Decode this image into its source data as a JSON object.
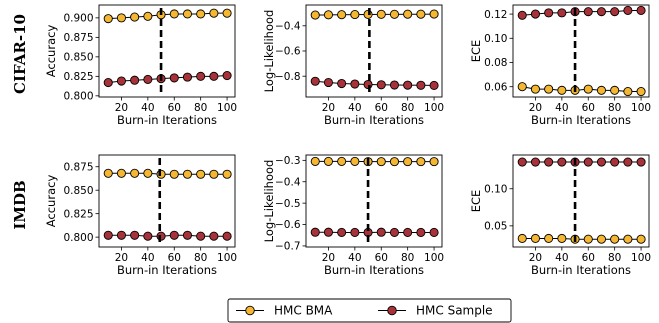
{
  "colors": {
    "bma": "#f5b731",
    "sample": "#a8323a",
    "line": "#000000",
    "marker_edge": "#000000"
  },
  "legend": {
    "position": "bottom-center",
    "entries": [
      "HMC BMA",
      "HMC Sample"
    ]
  },
  "chart_data": [
    {
      "type": "line",
      "row": "CIFAR-10",
      "col": 0,
      "xlabel": "Burn-in Iterations",
      "ylabel": "Accuracy",
      "x": [
        10,
        20,
        30,
        40,
        50,
        60,
        70,
        80,
        90,
        100
      ],
      "xlim": [
        3,
        106
      ],
      "xticks": [
        20,
        40,
        60,
        80,
        100
      ],
      "ylim": [
        0.7985,
        0.9165
      ],
      "yticks": [
        0.8,
        0.825,
        0.85,
        0.875,
        0.9
      ],
      "yticklabels": [
        "0.800",
        "0.825",
        "0.850",
        "0.875",
        "0.900"
      ],
      "vline": 50,
      "series": [
        {
          "name": "HMC BMA",
          "values": [
            0.899,
            0.9,
            0.901,
            0.902,
            0.904,
            0.905,
            0.905,
            0.905,
            0.906,
            0.906
          ]
        },
        {
          "name": "HMC Sample",
          "values": [
            0.817,
            0.819,
            0.82,
            0.821,
            0.822,
            0.823,
            0.824,
            0.825,
            0.825,
            0.826
          ]
        }
      ]
    },
    {
      "type": "line",
      "row": "CIFAR-10",
      "col": 1,
      "xlabel": "Burn-in Iterations",
      "ylabel": "Log-Likelihood",
      "x": [
        10,
        20,
        30,
        40,
        50,
        60,
        70,
        80,
        90,
        100
      ],
      "xlim": [
        3,
        106
      ],
      "xticks": [
        20,
        40,
        60,
        80,
        100
      ],
      "ylim": [
        -0.965,
        -0.235
      ],
      "yticks": [
        -0.8,
        -0.6,
        -0.4
      ],
      "yticklabels": [
        "−0.8",
        "−0.6",
        "−0.4"
      ],
      "vline": 51,
      "series": [
        {
          "name": "HMC BMA",
          "values": [
            -0.315,
            -0.313,
            -0.312,
            -0.311,
            -0.31,
            -0.309,
            -0.309,
            -0.308,
            -0.308,
            -0.307
          ]
        },
        {
          "name": "HMC Sample",
          "values": [
            -0.84,
            -0.85,
            -0.858,
            -0.862,
            -0.866,
            -0.868,
            -0.87,
            -0.871,
            -0.872,
            -0.873
          ]
        }
      ]
    },
    {
      "type": "line",
      "row": "CIFAR-10",
      "col": 2,
      "xlabel": "Burn-in Iterations",
      "ylabel": "ECE",
      "x": [
        10,
        20,
        30,
        40,
        50,
        60,
        70,
        80,
        90,
        100
      ],
      "xlim": [
        3,
        106
      ],
      "xticks": [
        20,
        40,
        60,
        80,
        100
      ],
      "ylim": [
        0.0515,
        0.1275
      ],
      "yticks": [
        0.06,
        0.08,
        0.1,
        0.12
      ],
      "yticklabels": [
        "0.06",
        "0.08",
        "0.10",
        "0.12"
      ],
      "vline": 50,
      "series": [
        {
          "name": "HMC BMA",
          "values": [
            0.06,
            0.058,
            0.058,
            0.057,
            0.057,
            0.058,
            0.057,
            0.057,
            0.056,
            0.056
          ]
        },
        {
          "name": "HMC Sample",
          "values": [
            0.119,
            0.12,
            0.121,
            0.121,
            0.122,
            0.122,
            0.122,
            0.122,
            0.123,
            0.123
          ]
        }
      ]
    },
    {
      "type": "line",
      "row": "IMDB",
      "col": 0,
      "xlabel": "Burn-in Iterations",
      "ylabel": "Accuracy",
      "x": [
        10,
        20,
        30,
        40,
        50,
        60,
        70,
        80,
        90,
        100
      ],
      "xlim": [
        3,
        106
      ],
      "xticks": [
        20,
        40,
        60,
        80,
        100
      ],
      "ylim": [
        0.7895,
        0.8875
      ],
      "yticks": [
        0.8,
        0.825,
        0.85,
        0.875
      ],
      "yticklabels": [
        "0.800",
        "0.825",
        "0.850",
        "0.875"
      ],
      "vline": 49,
      "series": [
        {
          "name": "HMC BMA",
          "values": [
            0.868,
            0.868,
            0.868,
            0.868,
            0.867,
            0.867,
            0.867,
            0.867,
            0.867,
            0.867
          ]
        },
        {
          "name": "HMC Sample",
          "values": [
            0.802,
            0.802,
            0.802,
            0.801,
            0.801,
            0.802,
            0.802,
            0.801,
            0.801,
            0.801
          ]
        }
      ]
    },
    {
      "type": "line",
      "row": "IMDB",
      "col": 1,
      "xlabel": "Burn-in Iterations",
      "ylabel": "Log-Likelihood",
      "x": [
        10,
        20,
        30,
        40,
        50,
        60,
        70,
        80,
        90,
        100
      ],
      "xlim": [
        3,
        106
      ],
      "xticks": [
        20,
        40,
        60,
        80,
        100
      ],
      "ylim": [
        -0.705,
        -0.275
      ],
      "yticks": [
        -0.7,
        -0.6,
        -0.5,
        -0.4,
        -0.3
      ],
      "yticklabels": [
        "−0.7",
        "−0.6",
        "−0.5",
        "−0.4",
        "−0.3"
      ],
      "vline": 50,
      "series": [
        {
          "name": "HMC BMA",
          "values": [
            -0.305,
            -0.305,
            -0.305,
            -0.305,
            -0.306,
            -0.306,
            -0.306,
            -0.306,
            -0.306,
            -0.306
          ]
        },
        {
          "name": "HMC Sample",
          "values": [
            -0.636,
            -0.636,
            -0.637,
            -0.637,
            -0.637,
            -0.636,
            -0.637,
            -0.637,
            -0.637,
            -0.637
          ]
        }
      ]
    },
    {
      "type": "line",
      "row": "IMDB",
      "col": 2,
      "xlabel": "Burn-in Iterations",
      "ylabel": "ECE",
      "x": [
        10,
        20,
        30,
        40,
        50,
        60,
        70,
        80,
        90,
        100
      ],
      "xlim": [
        3,
        106
      ],
      "xticks": [
        20,
        40,
        60,
        80,
        100
      ],
      "ylim": [
        0.0215,
        0.1455
      ],
      "yticks": [
        0.05,
        0.1
      ],
      "yticklabels": [
        "0.05",
        "0.10"
      ],
      "vline": 50,
      "series": [
        {
          "name": "HMC BMA",
          "values": [
            0.033,
            0.033,
            0.033,
            0.033,
            0.032,
            0.032,
            0.032,
            0.032,
            0.032,
            0.032
          ]
        },
        {
          "name": "HMC Sample",
          "values": [
            0.136,
            0.136,
            0.136,
            0.136,
            0.136,
            0.136,
            0.136,
            0.136,
            0.136,
            0.136
          ]
        }
      ]
    }
  ]
}
